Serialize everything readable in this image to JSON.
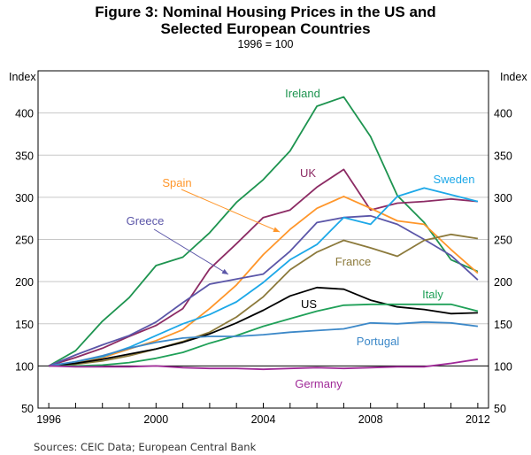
{
  "chart_data": {
    "type": "line",
    "title": [
      "Figure 3: Nominal Housing Prices in the US and",
      "Selected European Countries"
    ],
    "subtitle": "1996 = 100",
    "ylabel_left": "Index",
    "ylabel_right": "Index",
    "ylim": [
      50,
      450
    ],
    "yticks": [
      50,
      100,
      150,
      200,
      250,
      300,
      350,
      400
    ],
    "xlim": [
      1995.6,
      2012.4
    ],
    "xtick_labels": [
      1996,
      2000,
      2004,
      2008,
      2012
    ],
    "grid": true,
    "x": [
      1996,
      1997,
      1998,
      1999,
      2000,
      2001,
      2002,
      2003,
      2004,
      2005,
      2006,
      2007,
      2008,
      2009,
      2010,
      2011,
      2012
    ],
    "series": [
      {
        "name": "Ireland",
        "color": "#1e9450",
        "values": [
          100,
          118,
          153,
          181,
          219,
          229,
          258,
          294,
          321,
          355,
          408,
          419,
          372,
          302,
          270,
          226,
          212
        ]
      },
      {
        "name": "UK",
        "color": "#8c2b64",
        "values": [
          100,
          110,
          121,
          135,
          148,
          168,
          215,
          245,
          276,
          285,
          312,
          333,
          285,
          293,
          295,
          298,
          295
        ]
      },
      {
        "name": "Spain",
        "color": "#ff962a",
        "values": [
          100,
          104,
          110,
          120,
          130,
          143,
          168,
          196,
          232,
          262,
          287,
          301,
          287,
          272,
          268,
          238,
          210
        ]
      },
      {
        "name": "Greece",
        "color": "#5b56a8",
        "values": [
          100,
          113,
          125,
          136,
          152,
          175,
          197,
          203,
          209,
          236,
          270,
          276,
          278,
          268,
          250,
          231,
          202
        ]
      },
      {
        "name": "Sweden",
        "color": "#1ca8e8",
        "values": [
          100,
          105,
          111,
          122,
          136,
          150,
          161,
          176,
          199,
          226,
          244,
          276,
          268,
          301,
          311,
          303,
          295
        ]
      },
      {
        "name": "France",
        "color": "#8c7a3c",
        "values": [
          100,
          102,
          106,
          112,
          120,
          129,
          140,
          158,
          182,
          214,
          235,
          249,
          240,
          230,
          249,
          256,
          251
        ]
      },
      {
        "name": "US",
        "color": "#000000",
        "values": [
          100,
          103,
          108,
          114,
          120,
          128,
          138,
          151,
          166,
          183,
          193,
          191,
          178,
          170,
          167,
          162,
          163
        ]
      },
      {
        "name": "Italy",
        "color": "#1fa058",
        "values": [
          100,
          100,
          101,
          104,
          109,
          116,
          127,
          136,
          147,
          156,
          165,
          172,
          173,
          173,
          173,
          173,
          165
        ]
      },
      {
        "name": "Portugal",
        "color": "#3c88c8",
        "values": [
          100,
          105,
          112,
          121,
          128,
          133,
          135,
          135,
          137,
          140,
          142,
          144,
          151,
          150,
          152,
          151,
          147
        ]
      },
      {
        "name": "Germany",
        "color": "#a02a98",
        "values": [
          100,
          99,
          99,
          99,
          100,
          98,
          97,
          97,
          96,
          97,
          98,
          97,
          98,
          99,
          99,
          103,
          108
        ]
      }
    ]
  },
  "source": "Sources: CEIC Data; European Central Bank"
}
